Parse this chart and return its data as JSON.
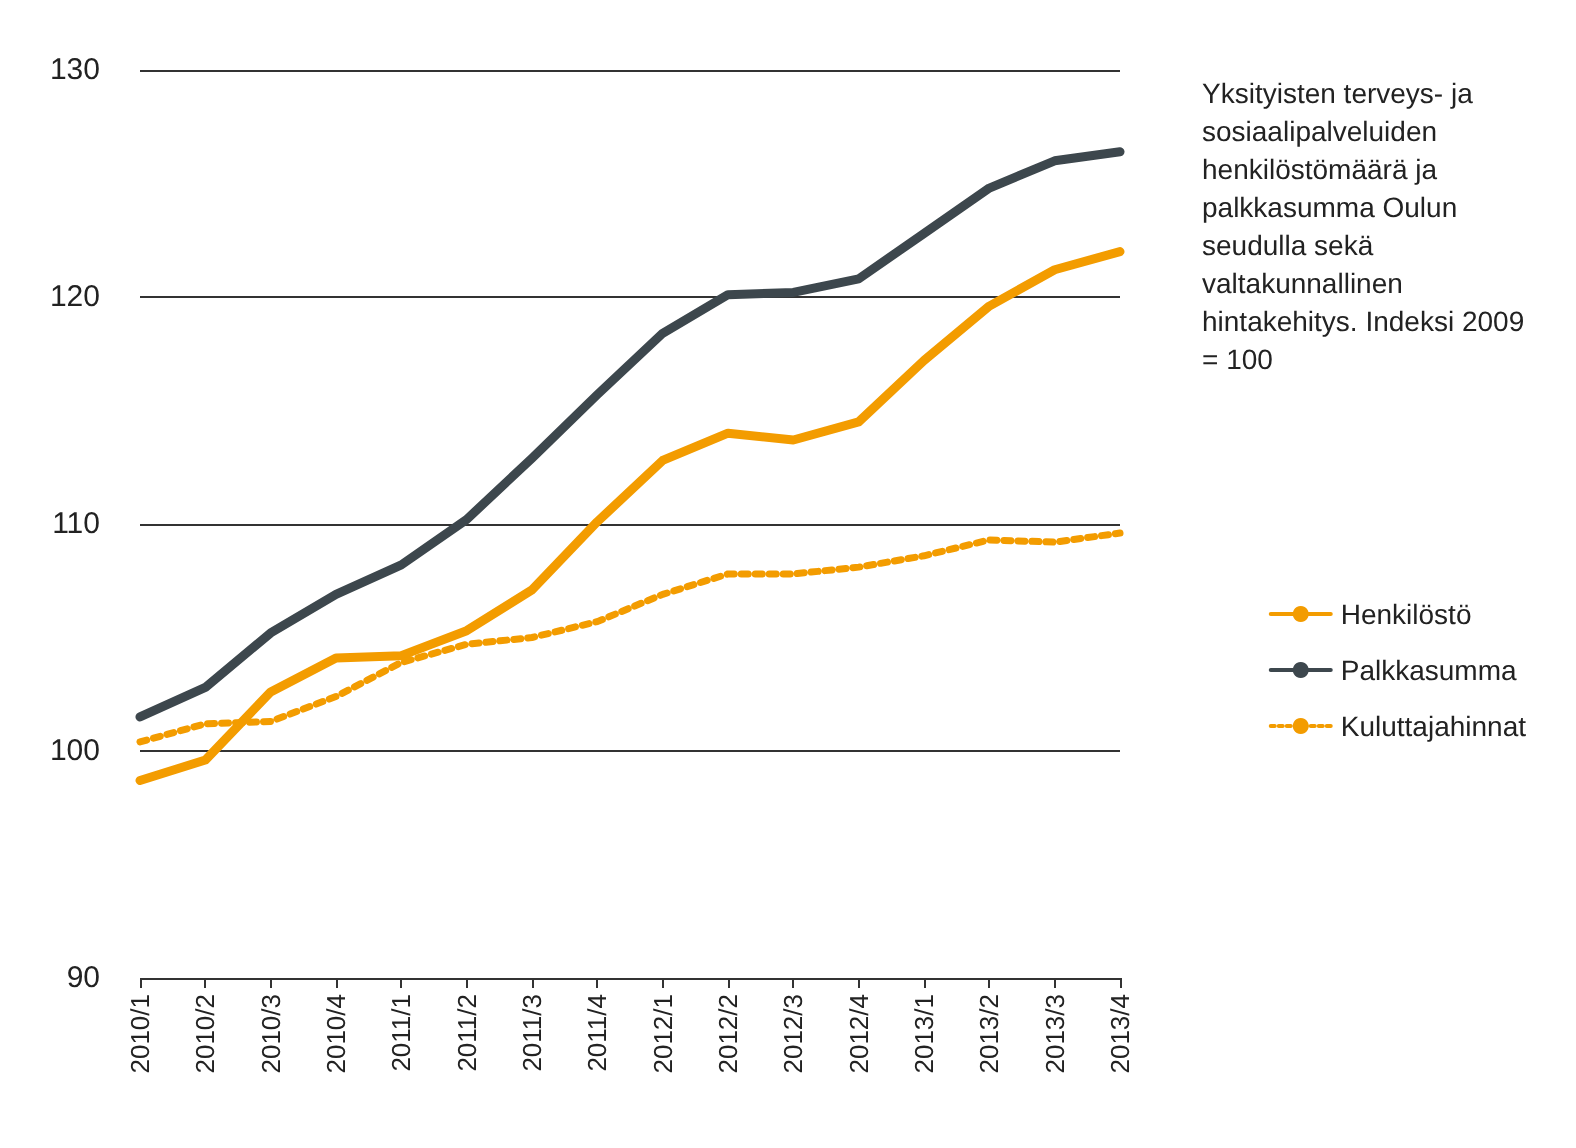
{
  "chart_data": {
    "type": "line",
    "title": "Yksityisten terveys- ja sosiaalipalveluiden henkilöstömäärä ja palkkasumma Oulun seudulla sekä valtakunnallinen hintakehitys. Indeksi 2009 = 100",
    "categories": [
      "2010/1",
      "2010/2",
      "2010/3",
      "2010/4",
      "2011/1",
      "2011/2",
      "2011/3",
      "2011/4",
      "2012/1",
      "2012/2",
      "2012/3",
      "2012/4",
      "2013/1",
      "2013/2",
      "2013/3",
      "2013/4"
    ],
    "series": [
      {
        "name": "Henkilöstö",
        "color": "#f39c00",
        "line_style": "solid",
        "values": [
          98.7,
          99.6,
          102.6,
          104.1,
          104.2,
          105.3,
          107.1,
          110.1,
          112.8,
          114.0,
          113.7,
          114.5,
          117.2,
          119.6,
          121.2,
          122.0
        ]
      },
      {
        "name": "Palkkasumma",
        "color": "#3d474d",
        "line_style": "solid",
        "values": [
          101.5,
          102.8,
          105.2,
          106.9,
          108.2,
          110.2,
          112.9,
          115.7,
          118.4,
          120.1,
          120.2,
          120.8,
          122.8,
          124.8,
          126.0,
          126.4
        ]
      },
      {
        "name": "Kuluttajahinnat",
        "color": "#f39c00",
        "line_style": "dotted",
        "values": [
          100.4,
          101.2,
          101.3,
          102.4,
          103.9,
          104.7,
          105.0,
          105.7,
          106.9,
          107.8,
          107.8,
          108.1,
          108.6,
          109.3,
          109.2,
          109.6
        ]
      }
    ],
    "ylim": [
      90,
      130
    ],
    "yticks": [
      90,
      100,
      110,
      120,
      130
    ],
    "grid": "y",
    "legend": "right",
    "marker": "none"
  }
}
